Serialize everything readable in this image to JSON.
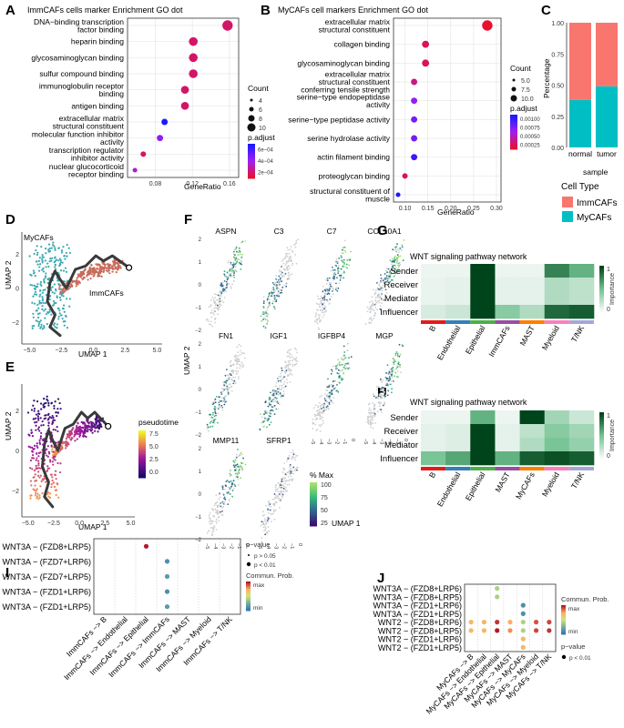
{
  "panels": {
    "A": {
      "label": "A",
      "title": "ImmCAFs cells marker Enrichment GO dot",
      "xlabel": "GeneRatio",
      "xticks": [
        "0.08",
        "0.12",
        "0.16"
      ],
      "terms": [
        {
          "name": "DNA−binding transcription\nfactor binding",
          "x": 0.158,
          "size": 10,
          "p": 0.0002
        },
        {
          "name": "heparin binding",
          "x": 0.121,
          "size": 8,
          "p": 0.0002
        },
        {
          "name": "glycosaminoglycan binding",
          "x": 0.121,
          "size": 8,
          "p": 0.0002
        },
        {
          "name": "sulfur compound binding",
          "x": 0.121,
          "size": 8,
          "p": 0.0002
        },
        {
          "name": "immunoglobulin receptor\nbinding",
          "x": 0.112,
          "size": 7,
          "p": 0.0002
        },
        {
          "name": "antigen binding",
          "x": 0.112,
          "size": 7,
          "p": 0.0002
        },
        {
          "name": "extracellular matrix\nstructural constituent",
          "x": 0.09,
          "size": 5,
          "p": 0.0008
        },
        {
          "name": "molecular function inhibitor\nactivity",
          "x": 0.085,
          "size": 5,
          "p": 0.0005
        },
        {
          "name": "transcription regulator\ninhibitor activity",
          "x": 0.067,
          "size": 4,
          "p": 0.0002
        },
        {
          "name": "nuclear glucocorticoid\nreceptor binding",
          "x": 0.058,
          "size": 3,
          "p": 0.0004
        }
      ],
      "legend": {
        "count_title": "Count",
        "count_values": [
          "4",
          "6",
          "8",
          "10"
        ],
        "p_title": "p.adjust",
        "p_values": [
          "6e−04",
          "4e−04",
          "2e−04"
        ]
      }
    },
    "B": {
      "label": "B",
      "title": "MyCAFs cell markers Enrichment GO dot",
      "xlabel": "GeneRatio",
      "xticks": [
        "0.10",
        "0.15",
        "0.20",
        "0.25",
        "0.30"
      ],
      "terms": [
        {
          "name": "extracellular matrix\nstructural constituent",
          "x": 0.28,
          "size": 10,
          "p": 0.0001
        },
        {
          "name": "collagen binding",
          "x": 0.145,
          "size": 6,
          "p": 0.0002
        },
        {
          "name": "glycosaminoglycan binding",
          "x": 0.145,
          "size": 6,
          "p": 0.0002
        },
        {
          "name": "extracellular matrix\nstructural constituent\nconferring tensile strength",
          "x": 0.12,
          "size": 5,
          "p": 0.0003
        },
        {
          "name": "serine−type endopeptidase\nactivity",
          "x": 0.12,
          "size": 5,
          "p": 0.0006
        },
        {
          "name": "serine−type peptidase activity",
          "x": 0.12,
          "size": 5,
          "p": 0.0007
        },
        {
          "name": "serine hydrolase activity",
          "x": 0.12,
          "size": 5,
          "p": 0.0007
        },
        {
          "name": "actin filament binding",
          "x": 0.12,
          "size": 5,
          "p": 0.0009
        },
        {
          "name": "proteoglycan binding",
          "x": 0.1,
          "size": 4,
          "p": 0.0002
        },
        {
          "name": "structural constituent of\nmuscle",
          "x": 0.085,
          "size": 3,
          "p": 0.001
        }
      ],
      "legend": {
        "count_title": "Count",
        "count_values": [
          "5.0",
          "7.5",
          "10.0"
        ],
        "p_title": "p.adjust",
        "p_values": [
          "0.00100",
          "0.00075",
          "0.00050",
          "0.00025"
        ]
      }
    },
    "C": {
      "label": "C",
      "ylabel": "Percentage",
      "xlabel": "sample",
      "categories": [
        "normal",
        "tumor"
      ],
      "yticks": [
        "0.00",
        "0.25",
        "0.50",
        "0.75",
        "1.00"
      ],
      "series": [
        {
          "name": "ImmCAFs",
          "color": "#f8766d",
          "values": [
            0.62,
            0.51
          ]
        },
        {
          "name": "MyCAFs",
          "color": "#00bfc4",
          "values": [
            0.38,
            0.49
          ]
        }
      ],
      "legend_title": "Cell Type"
    },
    "D": {
      "label": "D",
      "xlabel": "UMAP 1",
      "ylabel": "UMAP 2",
      "xticks": [
        "−5.0",
        "−2.5",
        "0.0",
        "2.5",
        "5.0"
      ],
      "yticks": [
        "2",
        "0",
        "−2"
      ],
      "cluster_labels": [
        "MyCAFs",
        "ImmCAFs"
      ]
    },
    "E": {
      "label": "E",
      "xlabel": "UMAP 1",
      "ylabel": "UMAP 2",
      "xticks": [
        "−5.0",
        "−2.5",
        "0.0",
        "2.5",
        "5.0"
      ],
      "yticks": [
        "2",
        "0",
        "−2"
      ],
      "legend_title": "pseudotime",
      "legend_values": [
        "7.5",
        "5.0",
        "2.5",
        "0.0"
      ]
    },
    "F": {
      "label": "F",
      "genes": [
        "ASPN",
        "C3",
        "C7",
        "COL10A1",
        "FN1",
        "IGF1",
        "IGFBP4",
        "MGP",
        "MMP11",
        "SFRP1"
      ],
      "xlabel": "UMAP 1",
      "ylabel": "UMAP 2",
      "yticks": [
        "2",
        "1",
        "0",
        "−1",
        "−2"
      ],
      "xticks": [
        "−5",
        "−4",
        "−3",
        "−2",
        "−1",
        "0"
      ],
      "legend_title": "% Max",
      "legend_values": [
        "100",
        "75",
        "50",
        "25"
      ]
    },
    "G": {
      "label": "G",
      "title": "WNT signaling pathway network",
      "rows": [
        "Sender",
        "Receiver",
        "Mediator",
        "Influencer"
      ],
      "cols": [
        "B",
        "Endothelial",
        "Epithelial",
        "ImmCAFs",
        "MAST",
        "Myeloid",
        "T/NK"
      ],
      "col_colors": [
        "#e41a1c",
        "#377eb8",
        "#4daf4a",
        "#984ea3",
        "#ff7f00",
        "#f781bf",
        "#a6a6d8"
      ],
      "values": [
        [
          0.02,
          0.02,
          1.0,
          0.02,
          0.02,
          0.75,
          0.55
        ],
        [
          0.03,
          0.05,
          1.0,
          0.05,
          0.05,
          0.25,
          0.2
        ],
        [
          0.03,
          0.05,
          1.0,
          0.05,
          0.05,
          0.25,
          0.2
        ],
        [
          0.1,
          0.15,
          1.0,
          0.4,
          0.25,
          0.85,
          0.9
        ]
      ],
      "legend_title": "Importance",
      "legend_values": [
        "1",
        "0"
      ]
    },
    "H": {
      "label": "H",
      "title": "WNT signaling pathway network",
      "rows": [
        "Sender",
        "Receiver",
        "Mediator",
        "Influencer"
      ],
      "cols": [
        "B",
        "Endothelial",
        "Epithelial",
        "MAST",
        "MyCAFs",
        "Myeloid",
        "T/NK"
      ],
      "col_colors": [
        "#e41a1c",
        "#377eb8",
        "#4daf4a",
        "#984ea3",
        "#ff7f00",
        "#f781bf",
        "#a6a6d8"
      ],
      "values": [
        [
          0.02,
          0.02,
          0.55,
          0.02,
          1.0,
          0.3,
          0.15
        ],
        [
          0.05,
          0.08,
          1.0,
          0.05,
          0.2,
          0.4,
          0.3
        ],
        [
          0.05,
          0.08,
          1.0,
          0.05,
          0.25,
          0.45,
          0.35
        ],
        [
          0.45,
          0.6,
          1.0,
          0.55,
          0.9,
          0.95,
          0.9
        ]
      ],
      "legend_title": "Importance",
      "legend_values": [
        "1",
        "0"
      ]
    },
    "I": {
      "label": "I",
      "rows": [
        "WNT3A − (FZD8+LRP5)",
        "WNT3A − (FZD7+LRP6)",
        "WNT3A − (FZD7+LRP5)",
        "WNT3A − (FZD1+LRP6)",
        "WNT3A − (FZD1+LRP5)"
      ],
      "cols": [
        "ImmCAFs −> B",
        "ImmCAFs −> Endothelial",
        "ImmCAFs −> Epithelial",
        "ImmCAFs −> ImmCAFs",
        "ImmCAFs −> MAST",
        "ImmCAFs −> Myeloid",
        "ImmCAFs −> T/NK"
      ],
      "points": [
        {
          "row": 0,
          "col": 2,
          "prob": 1.0
        },
        {
          "row": 1,
          "col": 3,
          "prob": 0.1
        },
        {
          "row": 2,
          "col": 3,
          "prob": 0.15
        },
        {
          "row": 3,
          "col": 3,
          "prob": 0.1
        },
        {
          "row": 4,
          "col": 3,
          "prob": 0.15
        }
      ],
      "legend": {
        "p_title": "p−value",
        "p_items": [
          "p > 0.05",
          "p < 0.01"
        ],
        "prob_title": "Commun. Prob.",
        "prob_max": "max",
        "prob_min": "min"
      }
    },
    "J": {
      "label": "J",
      "rows": [
        "WNT3A − (FZD8+LRP6)",
        "WNT3A − (FZD8+LRP5)",
        "WNT3A − (FZD1+LRP6)",
        "WNT3A − (FZD1+LRP5)",
        "WNT2 − (FZD8+LRP6)",
        "WNT2 − (FZD8+LRP5)",
        "WNT2 − (FZD1+LRP6)",
        "WNT2 − (FZD1+LRP5)"
      ],
      "cols": [
        "MyCAFs −> B",
        "MyCAFs −> Endothelial",
        "MyCAFs −> Epithelial",
        "MyCAFs −> MAST",
        "MyCAFs −> MyCAFs",
        "MyCAFs −> Myeloid",
        "MyCAFs −> T/NK"
      ],
      "points": [
        {
          "row": 0,
          "col": 2,
          "prob": 0.4
        },
        {
          "row": 1,
          "col": 2,
          "prob": 0.4
        },
        {
          "row": 2,
          "col": 4,
          "prob": 0.1
        },
        {
          "row": 3,
          "col": 4,
          "prob": 0.1
        },
        {
          "row": 4,
          "col": 0,
          "prob": 0.7
        },
        {
          "row": 4,
          "col": 1,
          "prob": 0.72
        },
        {
          "row": 4,
          "col": 2,
          "prob": 0.95
        },
        {
          "row": 4,
          "col": 3,
          "prob": 0.75
        },
        {
          "row": 4,
          "col": 4,
          "prob": 0.4
        },
        {
          "row": 4,
          "col": 5,
          "prob": 0.9
        },
        {
          "row": 4,
          "col": 6,
          "prob": 0.92
        },
        {
          "row": 5,
          "col": 0,
          "prob": 0.7
        },
        {
          "row": 5,
          "col": 1,
          "prob": 0.72
        },
        {
          "row": 5,
          "col": 2,
          "prob": 1.0
        },
        {
          "row": 5,
          "col": 3,
          "prob": 0.8
        },
        {
          "row": 5,
          "col": 4,
          "prob": 0.4
        },
        {
          "row": 5,
          "col": 5,
          "prob": 0.92
        },
        {
          "row": 5,
          "col": 6,
          "prob": 0.95
        },
        {
          "row": 6,
          "col": 4,
          "prob": 0.7
        },
        {
          "row": 7,
          "col": 4,
          "prob": 0.7
        }
      ],
      "legend": {
        "prob_title": "Commun. Prob.",
        "prob_max": "max",
        "prob_min": "min",
        "p_title": "p−value",
        "p_items": [
          "p < 0.01"
        ]
      }
    }
  }
}
